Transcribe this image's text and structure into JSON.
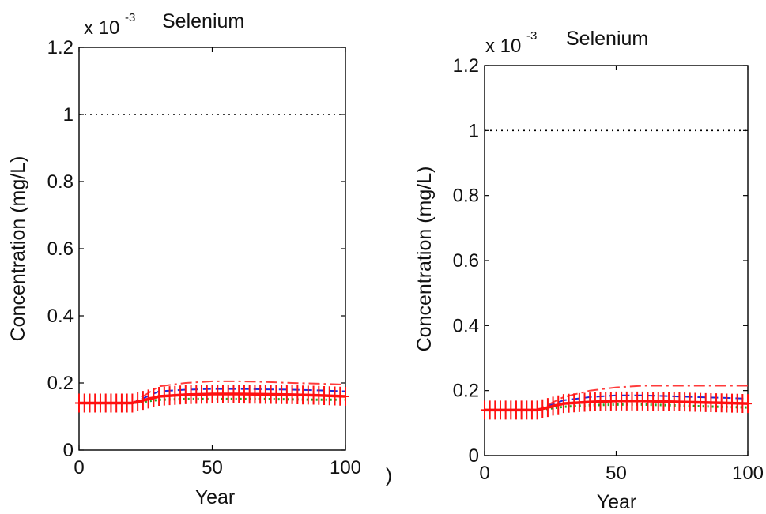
{
  "figure": {
    "stray_mark": ")"
  },
  "chart_data": [
    {
      "type": "line",
      "title": "Selenium",
      "multiplier_base": "x 10",
      "multiplier_exponent": "-3",
      "xlabel": "Year",
      "ylabel": "Concentration (mg/L)",
      "xlim": [
        0,
        100
      ],
      "ylim": [
        0,
        1.2
      ],
      "xticks": [
        0,
        50,
        100
      ],
      "xtick_labels": [
        "0",
        "50",
        "100"
      ],
      "yticks": [
        0,
        0.2,
        0.4,
        0.6,
        0.8,
        1,
        1.2
      ],
      "ytick_labels": [
        "0",
        "0.2",
        "0.4",
        "0.6",
        "0.8",
        "1",
        "1.2"
      ],
      "grid": false,
      "legend": "none",
      "reference_line": {
        "y": 1.0,
        "style": "dotted",
        "color": "#000000"
      },
      "series": [
        {
          "style": "dashdot",
          "color": "#ff3b3b",
          "x": [
            0,
            20,
            30,
            40,
            50,
            60,
            70,
            80,
            90,
            100
          ],
          "values": [
            0.14,
            0.14,
            0.19,
            0.2,
            0.205,
            0.205,
            0.203,
            0.2,
            0.198,
            0.195
          ]
        },
        {
          "style": "dashed",
          "color": "#1f2bd9",
          "x": [
            0,
            20,
            30,
            40,
            50,
            60,
            70,
            80,
            90,
            100
          ],
          "values": [
            0.14,
            0.14,
            0.175,
            0.18,
            0.182,
            0.182,
            0.181,
            0.18,
            0.178,
            0.175
          ]
        },
        {
          "style": "dotted",
          "color": "#22a31f",
          "x": [
            0,
            20,
            30,
            40,
            50,
            60,
            70,
            80,
            90,
            100
          ],
          "values": [
            0.14,
            0.14,
            0.15,
            0.152,
            0.152,
            0.152,
            0.152,
            0.151,
            0.15,
            0.15
          ]
        },
        {
          "style": "plus",
          "color": "#ff1010",
          "x": [
            0,
            20,
            30,
            40,
            50,
            60,
            70,
            80,
            90,
            100
          ],
          "values": [
            0.14,
            0.14,
            0.16,
            0.165,
            0.167,
            0.167,
            0.166,
            0.165,
            0.163,
            0.16
          ]
        }
      ]
    },
    {
      "type": "line",
      "title": "Selenium",
      "multiplier_base": "x 10",
      "multiplier_exponent": "-3",
      "xlabel": "Year",
      "ylabel": "Concentration (mg/L)",
      "xlim": [
        0,
        100
      ],
      "ylim": [
        0,
        1.2
      ],
      "xticks": [
        0,
        50,
        100
      ],
      "xtick_labels": [
        "0",
        "50",
        "100"
      ],
      "yticks": [
        0,
        0.2,
        0.4,
        0.6,
        0.8,
        1,
        1.2
      ],
      "ytick_labels": [
        "0",
        "0.2",
        "0.4",
        "0.6",
        "0.8",
        "1",
        "1.2"
      ],
      "grid": false,
      "legend": "none",
      "reference_line": {
        "y": 1.0,
        "style": "dotted",
        "color": "#000000"
      },
      "series": [
        {
          "style": "dashdot",
          "color": "#ff3b3b",
          "x": [
            0,
            20,
            30,
            40,
            50,
            60,
            70,
            80,
            90,
            100
          ],
          "values": [
            0.14,
            0.14,
            0.18,
            0.2,
            0.21,
            0.215,
            0.215,
            0.215,
            0.215,
            0.215
          ]
        },
        {
          "style": "dashed",
          "color": "#1f2bd9",
          "x": [
            0,
            20,
            30,
            40,
            50,
            60,
            70,
            80,
            90,
            100
          ],
          "values": [
            0.14,
            0.14,
            0.17,
            0.18,
            0.185,
            0.185,
            0.183,
            0.18,
            0.178,
            0.175
          ]
        },
        {
          "style": "dotted",
          "color": "#22a31f",
          "x": [
            0,
            20,
            30,
            40,
            50,
            60,
            70,
            80,
            90,
            100
          ],
          "values": [
            0.14,
            0.14,
            0.15,
            0.155,
            0.157,
            0.157,
            0.155,
            0.152,
            0.15,
            0.148
          ]
        },
        {
          "style": "plus",
          "color": "#ff1010",
          "x": [
            0,
            20,
            30,
            40,
            50,
            60,
            70,
            80,
            90,
            100
          ],
          "values": [
            0.14,
            0.14,
            0.16,
            0.165,
            0.168,
            0.168,
            0.166,
            0.164,
            0.162,
            0.16
          ]
        }
      ]
    }
  ]
}
